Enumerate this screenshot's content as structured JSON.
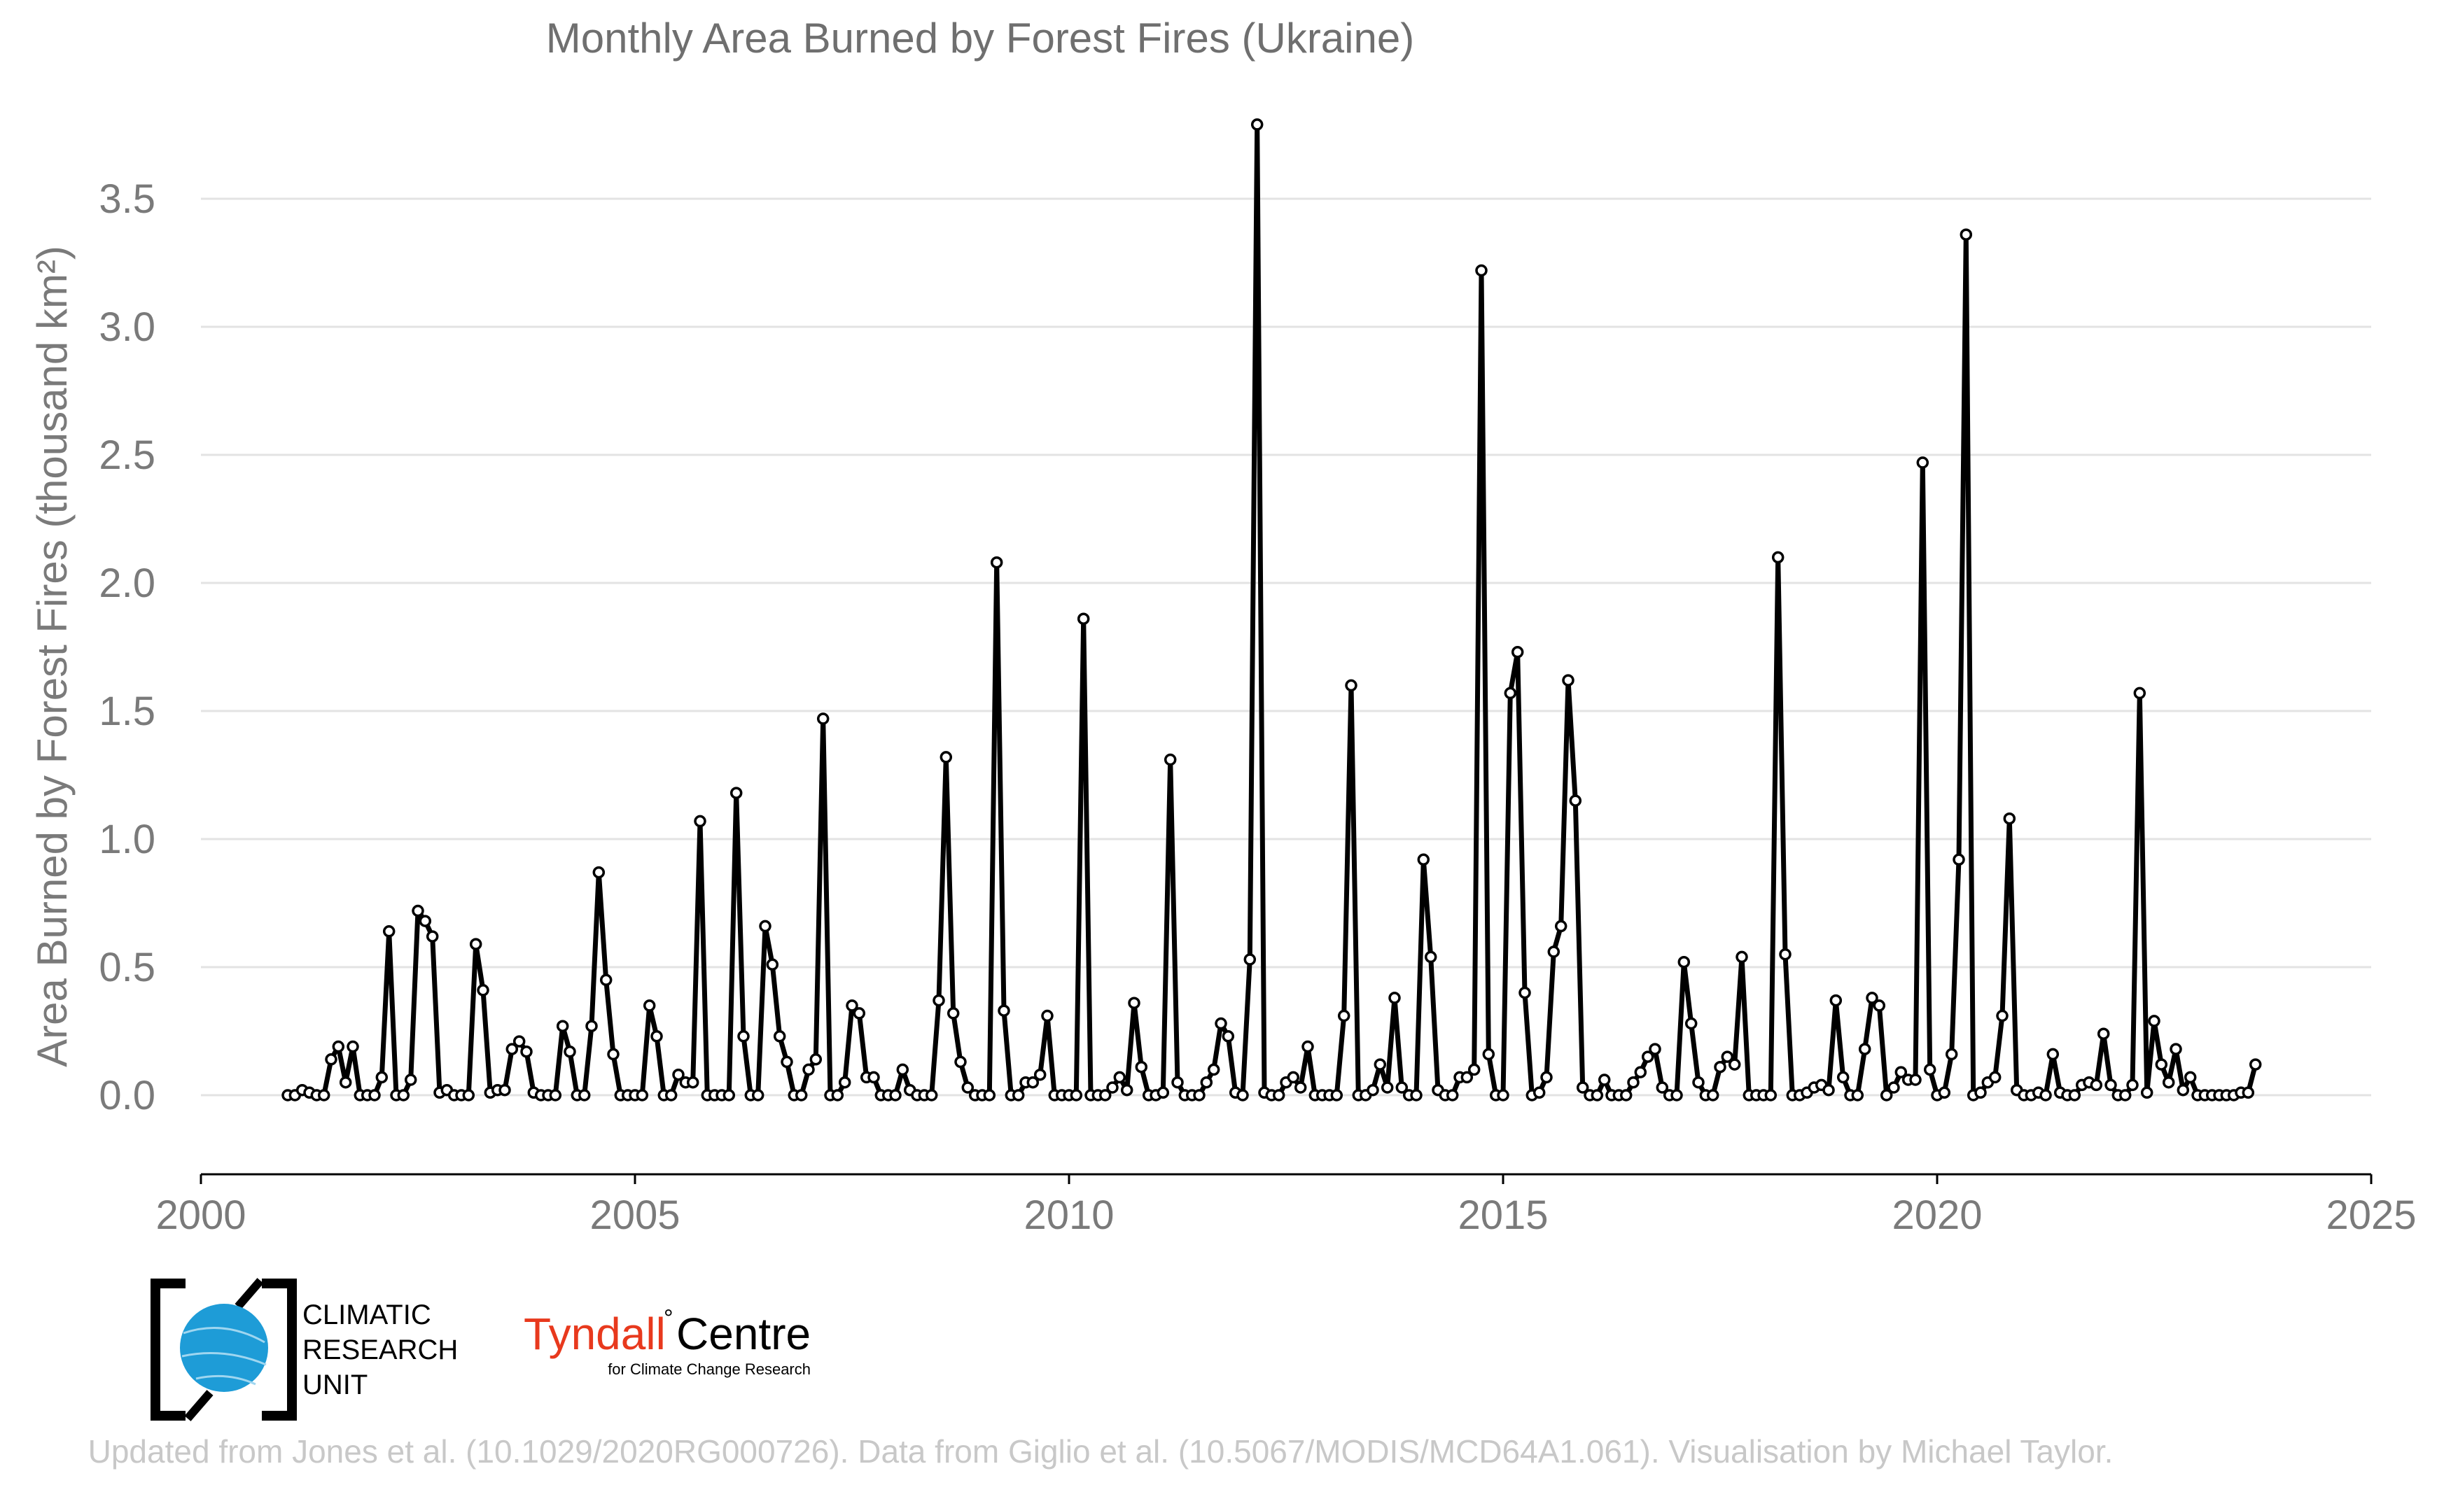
{
  "chart_data": {
    "type": "line",
    "title": "Monthly Area Burned by Forest Fires (Ukraine)",
    "xlabel": "",
    "ylabel": "Area Burned by Forest Fires (thousand km²)",
    "xlim": [
      2000,
      2025
    ],
    "ylim": [
      -0.3,
      3.8
    ],
    "xticks": [
      2000,
      2005,
      2010,
      2015,
      2020,
      2025
    ],
    "yticks": [
      "0.0",
      "0.5",
      "1.0",
      "1.5",
      "2.0",
      "2.5",
      "3.0",
      "3.5"
    ],
    "grid": "horizontal",
    "series_start": "2001-01",
    "series": [
      {
        "values": [
          0.0,
          0.0,
          0.02,
          0.01,
          0.0,
          0.0,
          0.14,
          0.19,
          0.05,
          0.19,
          0.0,
          0.0,
          0.0,
          0.07,
          0.64,
          0.0,
          0.0,
          0.06,
          0.72,
          0.68,
          0.62,
          0.01,
          0.02,
          0.0,
          0.0,
          0.0,
          0.59,
          0.41,
          0.01,
          0.02,
          0.02,
          0.18,
          0.21,
          0.17,
          0.01,
          0.0,
          0.0,
          0.0,
          0.27,
          0.17,
          0.0,
          0.0,
          0.27,
          0.87,
          0.45,
          0.16,
          0.0,
          0.0,
          0.0,
          0.0,
          0.35,
          0.23,
          0.0,
          0.0,
          0.08,
          0.05,
          0.05,
          1.07,
          0.0,
          0.0,
          0.0,
          0.0,
          1.18,
          0.23,
          0.0,
          0.0,
          0.66,
          0.51,
          0.23,
          0.13,
          0.0,
          0.0,
          0.1,
          0.14,
          1.47,
          0.0,
          0.0,
          0.05,
          0.35,
          0.32,
          0.07,
          0.07,
          0.0,
          0.0,
          0.0,
          0.1,
          0.02,
          0.0,
          0.0,
          0.0,
          0.37,
          1.32,
          0.32,
          0.13,
          0.03,
          0.0,
          0.0,
          0.0,
          2.08,
          0.33,
          0.0,
          0.0,
          0.05,
          0.05,
          0.08,
          0.31,
          0.0,
          0.0,
          0.0,
          0.0,
          1.86,
          0.0,
          0.0,
          0.0,
          0.03,
          0.07,
          0.02,
          0.36,
          0.11,
          0.0,
          0.0,
          0.01,
          1.31,
          0.05,
          0.0,
          0.0,
          0.0,
          0.05,
          0.1,
          0.28,
          0.23,
          0.01,
          0.0,
          0.53,
          3.79,
          0.01,
          0.0,
          0.0,
          0.05,
          0.07,
          0.03,
          0.19,
          0.0,
          0.0,
          0.0,
          0.0,
          0.31,
          1.6,
          0.0,
          0.0,
          0.02,
          0.12,
          0.03,
          0.38,
          0.03,
          0.0,
          0.0,
          0.92,
          0.54,
          0.02,
          0.0,
          0.0,
          0.07,
          0.07,
          0.1,
          3.22,
          0.16,
          0.0,
          0.0,
          1.57,
          1.73,
          0.4,
          0.0,
          0.01,
          0.07,
          0.56,
          0.66,
          1.62,
          1.15,
          0.03,
          0.0,
          0.0,
          0.06,
          0.0,
          0.0,
          0.0,
          0.05,
          0.09,
          0.15,
          0.18,
          0.03,
          0.0,
          0.0,
          0.52,
          0.28,
          0.05,
          0.0,
          0.0,
          0.11,
          0.15,
          0.12,
          0.54,
          0.0,
          0.0,
          0.0,
          0.0,
          2.1,
          0.55,
          0.0,
          0.0,
          0.01,
          0.03,
          0.04,
          0.02,
          0.37,
          0.07,
          0.0,
          0.0,
          0.18,
          0.38,
          0.35,
          0.0,
          0.03,
          0.09,
          0.06,
          0.06,
          2.47,
          0.1,
          0.0,
          0.01,
          0.16,
          0.92,
          3.36,
          0.0,
          0.01,
          0.05,
          0.07,
          0.31,
          1.08,
          0.02,
          0.0,
          0.0,
          0.01,
          0.0,
          0.16,
          0.01,
          0.0,
          0.0,
          0.04,
          0.05,
          0.04,
          0.24,
          0.04,
          0.0,
          0.0,
          0.04,
          1.57,
          0.01,
          0.29,
          0.12,
          0.05,
          0.18,
          0.02,
          0.07,
          0.0,
          0.0,
          0.0,
          0.0,
          0.0,
          0.0,
          0.01,
          0.01,
          0.12
        ]
      }
    ]
  },
  "logos": {
    "cru_line1": "CLIMATIC",
    "cru_line2": "RESEARCH",
    "cru_line3": "UNIT",
    "tyndall_name": "Tyndall",
    "tyndall_degree": "°",
    "tyndall_centre": "Centre",
    "tyndall_sub": "for Climate Change Research"
  },
  "credit": "Updated from Jones et al. (10.1029/2020RG000726). Data from Giglio et al. (10.5067/MODIS/MCD64A1.061). Visualisation by Michael Taylor.",
  "colors": {
    "line": "#000000",
    "grid": "#e3e3e3",
    "cru_blue": "#1e9cd7",
    "tyndall_red": "#e8391d"
  }
}
